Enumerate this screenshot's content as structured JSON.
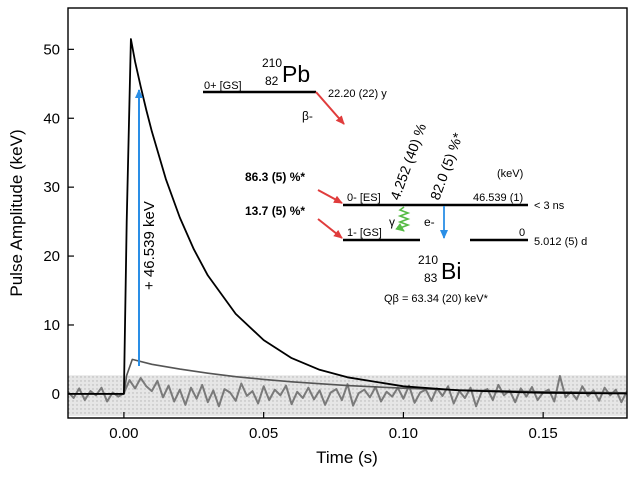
{
  "chart_data": {
    "type": "line",
    "xlabel": "Time (s)",
    "ylabel": "Pulse Amplitude (keV)",
    "xlim": [
      -0.02,
      0.18
    ],
    "ylim": [
      -3.5,
      56
    ],
    "x_ticks": [
      0.0,
      0.05,
      0.1,
      0.15
    ],
    "x_tick_labels": [
      "0.00",
      "0.05",
      "0.10",
      "0.15"
    ],
    "y_ticks": [
      0,
      10,
      20,
      30,
      40,
      50
    ],
    "y_tick_labels": [
      "0",
      "10",
      "20",
      "30",
      "40",
      "50"
    ],
    "noise_band": [
      -3.2,
      2.7
    ],
    "series": [
      {
        "key": "main-pulse",
        "x": [
          -0.02,
          0.0,
          0.001,
          0.0025,
          0.004,
          0.006,
          0.008,
          0.01,
          0.015,
          0.02,
          0.025,
          0.03,
          0.04,
          0.05,
          0.06,
          0.07,
          0.08,
          0.1,
          0.12,
          0.15,
          0.18
        ],
        "y": [
          0,
          0,
          25,
          51.5,
          48.2,
          44.6,
          41.2,
          38.1,
          31.2,
          25.6,
          21.0,
          17.2,
          11.6,
          7.8,
          5.2,
          3.5,
          2.4,
          1.1,
          0.5,
          0.15,
          0.05
        ],
        "color": "#000000"
      },
      {
        "key": "small-pulse",
        "x": [
          -0.02,
          0.0,
          0.001,
          0.003,
          0.01,
          0.02,
          0.03,
          0.04,
          0.05,
          0.06,
          0.08,
          0.1,
          0.12,
          0.15,
          0.18
        ],
        "y": [
          0,
          0,
          2.7,
          5.0,
          4.3,
          3.6,
          3.0,
          2.5,
          2.1,
          1.75,
          1.2,
          0.82,
          0.55,
          0.3,
          0.15
        ],
        "color": "#555555"
      },
      {
        "key": "noisy-trace",
        "x": [
          -0.02,
          -0.018,
          -0.016,
          -0.014,
          -0.012,
          -0.01,
          -0.008,
          -0.006,
          -0.004,
          -0.002,
          0.0,
          0.002,
          0.004,
          0.006,
          0.008,
          0.01,
          0.012,
          0.014,
          0.016,
          0.018,
          0.02,
          0.022,
          0.024,
          0.026,
          0.028,
          0.03,
          0.032,
          0.034,
          0.036,
          0.038,
          0.04,
          0.042,
          0.044,
          0.046,
          0.048,
          0.05,
          0.052,
          0.054,
          0.056,
          0.058,
          0.06,
          0.062,
          0.064,
          0.066,
          0.068,
          0.07,
          0.072,
          0.074,
          0.076,
          0.078,
          0.08,
          0.082,
          0.084,
          0.086,
          0.088,
          0.09,
          0.092,
          0.094,
          0.096,
          0.098,
          0.1,
          0.102,
          0.104,
          0.106,
          0.108,
          0.11,
          0.112,
          0.114,
          0.116,
          0.118,
          0.12,
          0.122,
          0.124,
          0.126,
          0.128,
          0.13,
          0.132,
          0.134,
          0.136,
          0.138,
          0.14,
          0.142,
          0.144,
          0.146,
          0.148,
          0.15,
          0.152,
          0.154,
          0.156,
          0.158,
          0.16,
          0.162,
          0.164,
          0.166,
          0.168,
          0.17,
          0.172,
          0.174,
          0.176,
          0.178,
          0.18
        ],
        "y": [
          0.3,
          -0.6,
          0.8,
          -0.9,
          0.4,
          -0.2,
          0.9,
          -1.1,
          0.2,
          -0.4,
          0.1,
          2.0,
          0.8,
          2.3,
          1.1,
          0.4,
          1.9,
          -0.5,
          1.2,
          -1.1,
          0.6,
          -1.6,
          0.9,
          -0.7,
          1.3,
          -1.2,
          0.5,
          -1.8,
          0.7,
          0.2,
          -1.0,
          1.5,
          -0.3,
          0.4,
          -1.4,
          1.1,
          -0.9,
          0.6,
          -0.2,
          1.2,
          -1.5,
          0.3,
          -0.6,
          0.9,
          -0.8,
          0.5,
          -1.6,
          0.2,
          0.7,
          -0.9,
          1.4,
          -1.7,
          0.1,
          0.6,
          -0.5,
          1.0,
          -1.1,
          0.3,
          -0.4,
          0.9,
          -0.7,
          1.2,
          -1.3,
          0.2,
          0.6,
          -1.0,
          0.8,
          -0.3,
          1.1,
          -1.4,
          0.4,
          -0.6,
          0.9,
          -1.8,
          0.3,
          0.7,
          -0.9,
          1.3,
          -0.2,
          0.5,
          -1.2,
          0.8,
          -0.4,
          1.0,
          -0.9,
          0.2,
          0.6,
          -1.1,
          2.6,
          -0.5,
          0.3,
          -0.8,
          1.1,
          -0.3,
          0.5,
          -1.0,
          0.9,
          -0.2,
          0.6,
          -1.2,
          0.4
        ],
        "color": "#7a7a7a"
      }
    ],
    "annotations": {
      "arrow_label": "+ 46.539 keV",
      "pb_mass": "210",
      "pb_z": "82",
      "pb_symbol": "Pb",
      "pb_state": "0+ [GS]",
      "pb_halflife": "22.20 (22) y",
      "beta_label": "β-",
      "bi_mass": "210",
      "bi_z": "83",
      "bi_symbol": "Bi",
      "branch_es": "86.3 (5) %*",
      "branch_gs": "13.7 (5) %*",
      "es_state": "0- [ES]",
      "gs_state": "1- [GS]",
      "es_energy": "46.539 (1)",
      "gs_energy": "0",
      "energy_unit": "(keV)",
      "es_halflife": "< 3 ns",
      "gs_halflife": "5.012 (5) d",
      "gamma_intensity": "4.252 (40) %",
      "ce_intensity": "82.0 (5) %*",
      "gamma_symbol": "γ",
      "ce_label": "e-",
      "qbeta": "Qβ = 63.34 (20) keV*"
    },
    "colors": {
      "red": "#e03c3c",
      "green": "#55bb44",
      "blue": "#2a8ee6",
      "text_blue": "#2a6fc4",
      "noise_band": "#dcdcdc"
    }
  }
}
